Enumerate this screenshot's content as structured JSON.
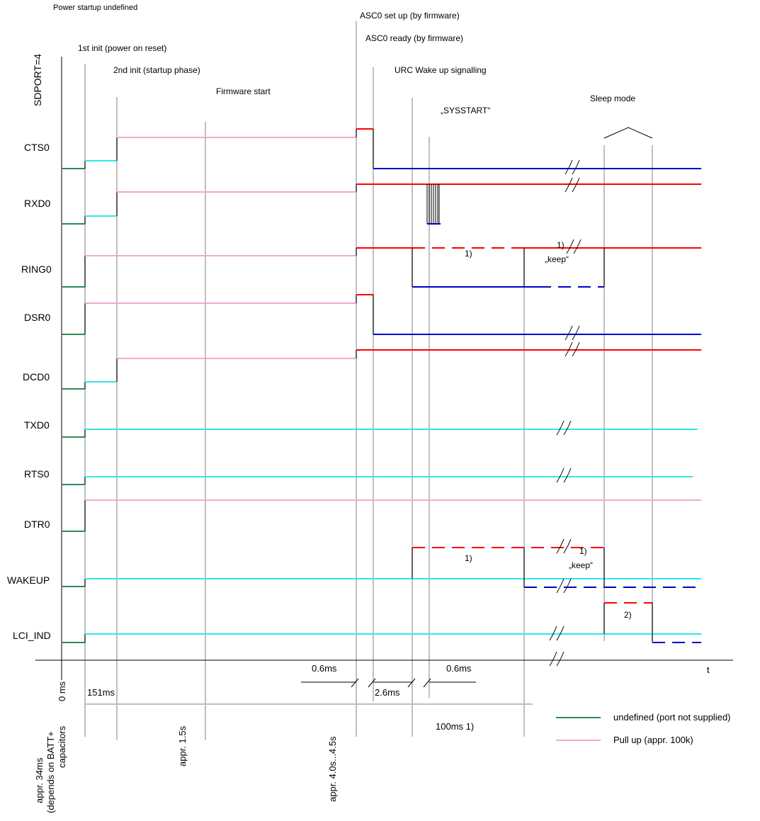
{
  "colors": {
    "undefined": "#2e8b57",
    "cyan": "#33e6e6",
    "pull_up": "#f2a6d2",
    "high": "#ff0000",
    "low": "#0000cc",
    "grid": "#c0c0c0"
  },
  "events": {
    "power_startup": "Power startup undefined",
    "asc0_setup": "ASC0 set up (by firmware)",
    "asc0_ready": "ASC0 ready (by firmware)",
    "first_init": "1st  init (power on reset)",
    "second_init": "2nd  init (startup phase)",
    "urc_wakeup": "URC Wake up signalling",
    "firmware_start": "Firmware start",
    "sysstart": "„SYSSTART“",
    "sleep_mode": "Sleep mode"
  },
  "sdport": "SDPORT=4",
  "signals": [
    "CTS0",
    "RXD0",
    "RING0",
    "DSR0",
    "DCD0",
    "TXD0",
    "RTS0",
    "DTR0",
    "WAKEUP",
    "LCI_IND"
  ],
  "notes": {
    "ring_1": "1)",
    "ring_1b": "1)",
    "ring_keep": "„keep“",
    "wakeup_1": "1)",
    "wakeup_1b": "1)",
    "wakeup_keep": "„keep“",
    "lci_2": "2)"
  },
  "axis": {
    "t_label": "t"
  },
  "timing": {
    "t0": "0 ms",
    "t151": "151ms",
    "d06a": "0.6ms",
    "d26": "2.6ms",
    "d06b": "0.6ms",
    "d100": "100ms 1)"
  },
  "vertical_labels": {
    "batt": [
      "appr. 34ms",
      "(depends on BATT+",
      "capacitors"
    ],
    "appr15": "appr. 1.5s",
    "appr40": "appr. 4.0s...4.5s"
  },
  "legend": {
    "undefined": "undefined (port not supplied)",
    "pull_up": "Pull up (appr. 100k)"
  }
}
